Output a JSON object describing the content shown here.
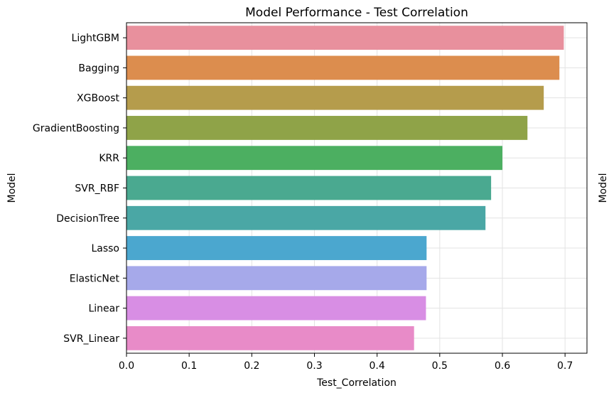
{
  "chart_data": {
    "type": "bar",
    "orientation": "horizontal",
    "title": "Model Performance - Test Correlation",
    "xlabel": "Test_Correlation",
    "ylabel": "Model",
    "ylabel_right": "Model",
    "xlim": [
      0.0,
      0.735
    ],
    "xticks": [
      "0.0",
      "0.1",
      "0.2",
      "0.3",
      "0.4",
      "0.5",
      "0.6",
      "0.7"
    ],
    "grid": true,
    "categories": [
      "LightGBM",
      "Bagging",
      "XGBoost",
      "GradientBoosting",
      "KRR",
      "SVR_RBF",
      "DecisionTree",
      "Lasso",
      "ElasticNet",
      "Linear",
      "SVR_Linear"
    ],
    "values": [
      0.698,
      0.691,
      0.666,
      0.64,
      0.6,
      0.582,
      0.573,
      0.479,
      0.479,
      0.478,
      0.459
    ],
    "colors": [
      "#e8909d",
      "#dc8d4e",
      "#b59c4c",
      "#8fa348",
      "#4caf61",
      "#4aa990",
      "#4aa7a5",
      "#4ba7cf",
      "#a6a9ea",
      "#d88ee4",
      "#e88bc8"
    ]
  }
}
